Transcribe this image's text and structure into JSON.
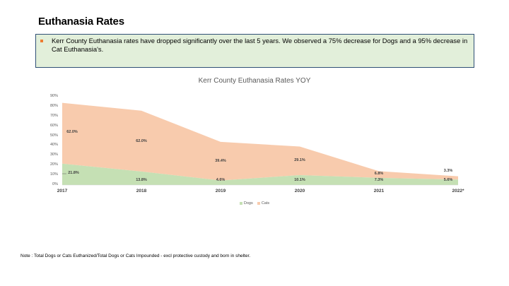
{
  "page": {
    "title": "Euthanasia Rates",
    "callout": "Kerr County Euthanasia rates have dropped significantly over the last 5 years. We observed a 75% decrease for Dogs and a 95% decrease in Cat Euthanasia's.",
    "note": "Note : Total Dogs or Cats Euthanized/Total Dogs or Cats Impounded - excl protective custody and born in shelter."
  },
  "colors": {
    "dogs": "#c5e0b4",
    "cats": "#f8cbad",
    "callout_bg": "#e2efda",
    "callout_border": "#2f4f75",
    "bullet": "#ed7d31"
  },
  "chart_data": {
    "type": "area",
    "stacked": true,
    "title": "Kerr County Euthanasia Rates YOY",
    "categories": [
      "2017",
      "2018",
      "2019",
      "2020",
      "2021",
      "2022*"
    ],
    "series": [
      {
        "name": "Dogs",
        "values": [
          21.8,
          13.8,
          4.6,
          10.1,
          7.3,
          5.6
        ],
        "labels": [
          "21.8%",
          "13.8%",
          "4.6%",
          "10.1%",
          "7.3%",
          "5.6%"
        ]
      },
      {
        "name": "Cats",
        "values": [
          62.0,
          62.0,
          39.4,
          29.1,
          6.8,
          3.3
        ],
        "labels": [
          "62.0%",
          "62.0%",
          "39.4%",
          "29.1%",
          "6.8%",
          "3.3%"
        ]
      }
    ],
    "xlabel": "",
    "ylabel": "",
    "ylim": [
      0,
      90
    ],
    "yticks": [
      "0%",
      "10%",
      "20%",
      "30%",
      "40%",
      "50%",
      "60%",
      "70%",
      "80%",
      "90%"
    ],
    "grid": false,
    "legend_position": "bottom",
    "legend": [
      "Dogs",
      "Cats"
    ]
  }
}
